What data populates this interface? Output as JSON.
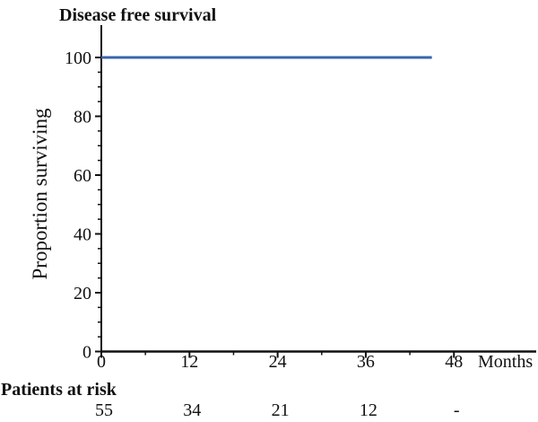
{
  "title": "Disease free survival",
  "y_axis_label": "Proportion surviving",
  "x_axis_unit_label": "Months",
  "patients_at_risk": {
    "label": "Patients at risk",
    "values": [
      "55",
      "34",
      "21",
      "12",
      "-"
    ]
  },
  "colors": {
    "curve": "#3a63b0",
    "axis": "#111111",
    "text": "#111111",
    "background": "#ffffff"
  },
  "chart_data": {
    "type": "line",
    "title": "Disease free survival",
    "xlabel": "Months",
    "ylabel": "Proportion surviving",
    "x_ticks": [
      0,
      12,
      24,
      36,
      48
    ],
    "x_minor_tick_step": 6,
    "y_ticks": [
      0,
      20,
      40,
      60,
      80,
      100
    ],
    "y_minor_tick_step": 5,
    "xlim": [
      0,
      59.2
    ],
    "ylim": [
      0,
      111
    ],
    "grid": false,
    "legend": false,
    "series": [
      {
        "name": "Disease free survival",
        "color": "#3a63b0",
        "x": [
          0,
          45
        ],
        "y": [
          100,
          100
        ]
      }
    ],
    "at_risk": {
      "label": "Patients at risk",
      "x": [
        0,
        12,
        24,
        36,
        48
      ],
      "values": [
        "55",
        "34",
        "21",
        "12",
        "-"
      ]
    }
  }
}
